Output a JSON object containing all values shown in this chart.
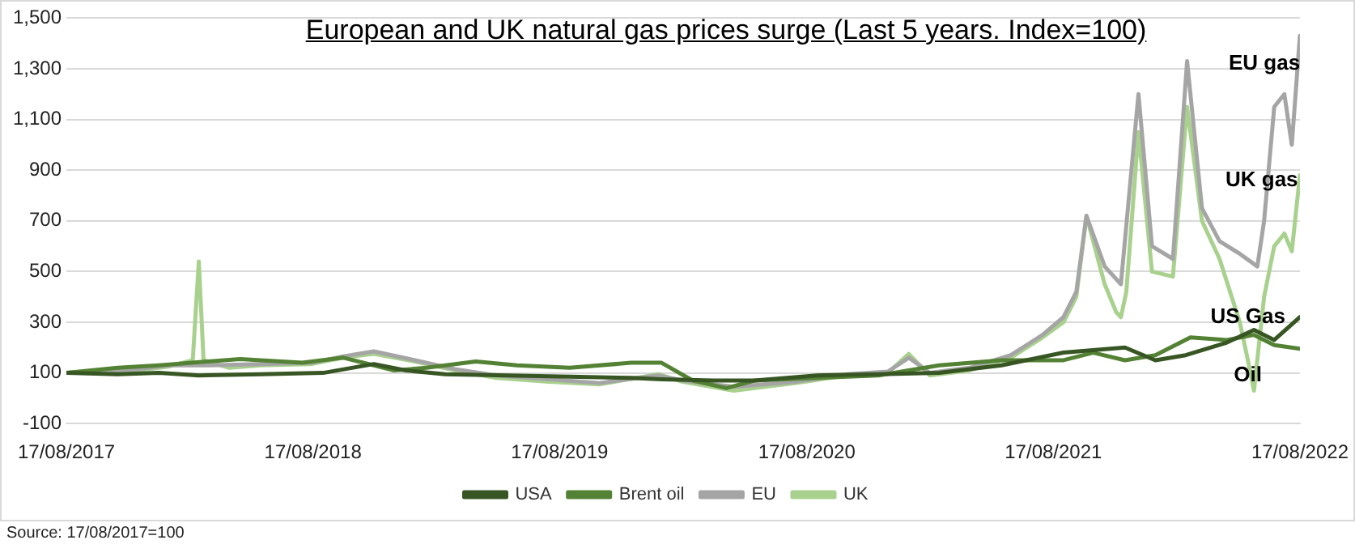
{
  "chart_data": {
    "type": "line",
    "title": "European and UK natural gas prices surge (Last 5 years. Index=100)",
    "xlim": [
      "2017-08-17",
      "2022-08-17"
    ],
    "xticks": [
      {
        "value": "2017-08-17",
        "label": "17/08/2017"
      },
      {
        "value": "2018-08-17",
        "label": "17/08/2018"
      },
      {
        "value": "2019-08-17",
        "label": "17/08/2019"
      },
      {
        "value": "2020-08-17",
        "label": "17/08/2020"
      },
      {
        "value": "2021-08-17",
        "label": "17/08/2021"
      },
      {
        "value": "2022-08-17",
        "label": "17/08/2022"
      }
    ],
    "ylim": [
      -100,
      1500
    ],
    "yticks": [
      {
        "value": -100,
        "label": "-100"
      },
      {
        "value": 100,
        "label": "100"
      },
      {
        "value": 300,
        "label": "300"
      },
      {
        "value": 500,
        "label": "500"
      },
      {
        "value": 700,
        "label": "700"
      },
      {
        "value": 900,
        "label": "900"
      },
      {
        "value": 1100,
        "label": "1,100"
      },
      {
        "value": 1300,
        "label": "1,300"
      },
      {
        "value": 1500,
        "label": "1,500"
      }
    ],
    "grid": "y",
    "legend": "bottom",
    "marker": "none",
    "series": [
      {
        "name": "USA",
        "color": "#375623",
        "x": [
          "2017-08-17",
          "2017-11-01",
          "2018-01-01",
          "2018-03-01",
          "2018-06-01",
          "2018-09-01",
          "2018-11-15",
          "2019-01-01",
          "2019-03-01",
          "2019-06-01",
          "2019-09-01",
          "2019-12-01",
          "2020-01-15",
          "2020-04-01",
          "2020-06-01",
          "2020-09-01",
          "2020-12-01",
          "2021-03-01",
          "2021-06-01",
          "2021-09-01",
          "2021-12-01",
          "2022-01-15",
          "2022-03-01",
          "2022-05-01",
          "2022-06-10",
          "2022-07-10",
          "2022-08-17"
        ],
        "values": [
          100,
          95,
          100,
          90,
          95,
          100,
          135,
          110,
          95,
          90,
          85,
          80,
          75,
          70,
          70,
          90,
          95,
          100,
          130,
          180,
          200,
          150,
          170,
          220,
          270,
          230,
          320
        ]
      },
      {
        "name": "Brent oil",
        "color": "#548235",
        "x": [
          "2017-08-17",
          "2017-11-01",
          "2018-01-01",
          "2018-05-01",
          "2018-08-01",
          "2018-10-01",
          "2018-12-15",
          "2019-02-01",
          "2019-04-15",
          "2019-06-15",
          "2019-09-01",
          "2019-12-01",
          "2020-01-15",
          "2020-03-01",
          "2020-04-20",
          "2020-06-01",
          "2020-09-01",
          "2020-12-01",
          "2021-03-01",
          "2021-06-01",
          "2021-09-01",
          "2021-10-15",
          "2021-12-01",
          "2022-01-15",
          "2022-03-08",
          "2022-05-01",
          "2022-06-10",
          "2022-07-10",
          "2022-08-17"
        ],
        "values": [
          100,
          120,
          130,
          155,
          140,
          160,
          110,
          120,
          145,
          130,
          120,
          140,
          140,
          70,
          40,
          70,
          80,
          90,
          130,
          150,
          150,
          180,
          150,
          170,
          240,
          230,
          250,
          210,
          195
        ]
      },
      {
        "name": "EU",
        "color": "#a5a5a5",
        "x": [
          "2017-08-17",
          "2017-10-01",
          "2017-12-01",
          "2018-01-15",
          "2018-03-15",
          "2018-06-01",
          "2018-08-15",
          "2018-10-01",
          "2018-11-15",
          "2019-01-15",
          "2019-03-15",
          "2019-05-15",
          "2019-08-01",
          "2019-10-15",
          "2020-01-10",
          "2020-02-15",
          "2020-05-01",
          "2020-08-01",
          "2020-10-15",
          "2020-12-15",
          "2021-01-15",
          "2021-02-15",
          "2021-04-15",
          "2021-06-15",
          "2021-08-01",
          "2021-09-01",
          "2021-09-20",
          "2021-10-05",
          "2021-11-01",
          "2021-11-25",
          "2021-12-21",
          "2022-01-10",
          "2022-02-10",
          "2022-03-03",
          "2022-03-25",
          "2022-04-20",
          "2022-05-20",
          "2022-06-15",
          "2022-06-25",
          "2022-07-10",
          "2022-07-25",
          "2022-08-05",
          "2022-08-17"
        ],
        "values": [
          100,
          105,
          115,
          130,
          130,
          135,
          140,
          165,
          185,
          150,
          115,
          90,
          75,
          60,
          90,
          70,
          45,
          65,
          95,
          105,
          160,
          100,
          120,
          170,
          250,
          320,
          420,
          720,
          520,
          450,
          1200,
          600,
          550,
          1330,
          750,
          620,
          570,
          520,
          700,
          1150,
          1200,
          1000,
          1430
        ]
      },
      {
        "name": "UK",
        "color": "#a9d18e",
        "x": [
          "2017-08-17",
          "2017-10-01",
          "2017-12-01",
          "2018-01-15",
          "2018-02-20",
          "2018-03-01",
          "2018-03-08",
          "2018-04-15",
          "2018-06-01",
          "2018-08-15",
          "2018-10-01",
          "2018-11-15",
          "2019-01-15",
          "2019-03-15",
          "2019-05-15",
          "2019-08-01",
          "2019-10-15",
          "2020-01-10",
          "2020-02-15",
          "2020-05-01",
          "2020-08-01",
          "2020-10-15",
          "2020-12-15",
          "2021-01-15",
          "2021-02-15",
          "2021-04-15",
          "2021-06-15",
          "2021-08-01",
          "2021-09-01",
          "2021-09-20",
          "2021-10-05",
          "2021-11-01",
          "2021-11-18",
          "2021-11-25",
          "2021-12-03",
          "2021-12-21",
          "2022-01-10",
          "2022-02-10",
          "2022-03-03",
          "2022-03-25",
          "2022-04-20",
          "2022-05-20",
          "2022-06-01",
          "2022-06-10",
          "2022-06-25",
          "2022-07-10",
          "2022-07-25",
          "2022-08-05",
          "2022-08-17"
        ],
        "values": [
          100,
          105,
          110,
          125,
          150,
          540,
          150,
          120,
          130,
          135,
          160,
          175,
          145,
          110,
          80,
          65,
          55,
          95,
          65,
          30,
          60,
          90,
          100,
          175,
          90,
          110,
          160,
          240,
          300,
          400,
          720,
          450,
          340,
          320,
          420,
          1050,
          500,
          480,
          1150,
          700,
          550,
          300,
          150,
          30,
          400,
          600,
          650,
          580,
          880
        ]
      }
    ],
    "annotations": [
      "EU gas",
      "UK gas",
      {
        "text": "US Gas",
        "x": "2022-06-01",
        "y": 321
      },
      {
        "text": "Oil",
        "x": "2022-06-01",
        "y": 91
      },
      "Source: 17/08/2017=100"
    ]
  }
}
